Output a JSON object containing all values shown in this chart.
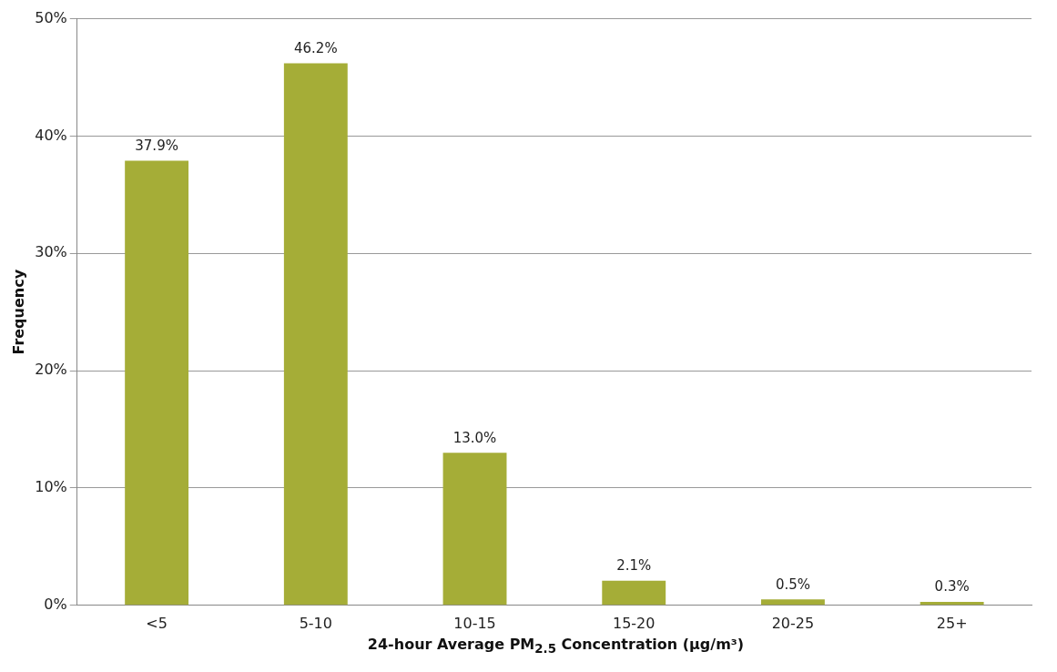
{
  "chart_data": {
    "type": "bar",
    "xlabel": "24-hour Average PM$_{2.5}$ Concentration (µg/m³)",
    "ylabel": "Frequency",
    "categories": [
      "<5",
      "5-10",
      "10-15",
      "15-20",
      "20-25",
      "25+"
    ],
    "values": [
      37.9,
      46.2,
      13.0,
      2.1,
      0.5,
      0.3
    ],
    "value_labels": [
      "37.9%",
      "46.2%",
      "13.0%",
      "2.1%",
      "0.5%",
      "0.3%"
    ],
    "color": "#a5ad37",
    "ylim": [
      0,
      50
    ],
    "yticks": [
      {
        "value": 0,
        "label": "0%"
      },
      {
        "value": 10,
        "label": "10%"
      },
      {
        "value": 20,
        "label": "20%"
      },
      {
        "value": 30,
        "label": "30%"
      },
      {
        "value": 40,
        "label": "40%"
      },
      {
        "value": 50,
        "label": "50%"
      }
    ],
    "grid": "y",
    "legend": false
  }
}
